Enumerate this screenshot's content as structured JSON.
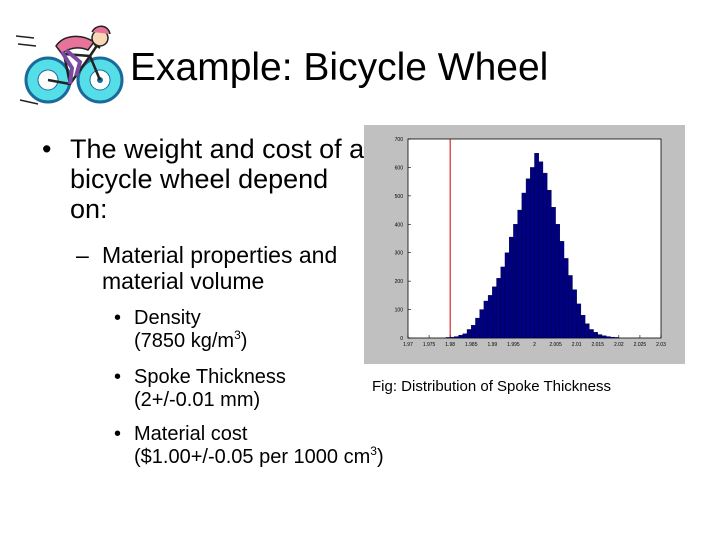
{
  "slide": {
    "title": "Example: Bicycle Wheel",
    "clipart_icon": "cyclist-icon",
    "bullet1": {
      "marker": "•",
      "text": "The weight and cost of a bicycle wheel depend on:"
    },
    "bullet2": {
      "marker": "–",
      "text": "Material properties and material volume"
    },
    "sub_bullets": [
      {
        "marker": "•",
        "line1": "Density",
        "line2_pre": "(7850 kg/m",
        "line2_sup": "3",
        "line2_post": ")"
      },
      {
        "marker": "•",
        "line1": "Spoke Thickness",
        "line2_pre": "(2+/-0.01 mm)",
        "line2_sup": "",
        "line2_post": ""
      },
      {
        "marker": "•",
        "line1": "Material cost",
        "line2_pre": "($1.00+/-0.05 per 1000 cm",
        "line2_sup": "3",
        "line2_post": ")"
      }
    ],
    "caption": "Fig: Distribution of Spoke Thickness"
  },
  "chart_data": {
    "type": "bar",
    "title": "",
    "xlabel": "",
    "ylabel": "",
    "ylim": [
      0,
      700
    ],
    "yticks": [
      0,
      100,
      200,
      300,
      400,
      500,
      600,
      700
    ],
    "xticks": [
      "1.97",
      "1.975",
      "1.98",
      "1.985",
      "1.99",
      "1.995",
      "2",
      "2.005",
      "2.01",
      "2.015",
      "2.02",
      "2.025",
      "2.03"
    ],
    "xlim": [
      1.97,
      2.03
    ],
    "bin_width": 0.001,
    "bin_centers": [
      1.9795,
      1.9805,
      1.9815,
      1.9825,
      1.9835,
      1.9845,
      1.9855,
      1.9865,
      1.9875,
      1.9885,
      1.9895,
      1.9905,
      1.9915,
      1.9925,
      1.9935,
      1.9945,
      1.9955,
      1.9965,
      1.9975,
      1.9985,
      1.9995,
      2.0005,
      2.0015,
      2.0025,
      2.0035,
      2.0045,
      2.0055,
      2.0065,
      2.0075,
      2.0085,
      2.0095,
      2.0105,
      2.0115,
      2.0125,
      2.0135,
      2.0145,
      2.0155,
      2.0165,
      2.0175,
      2.0185,
      2.0195
    ],
    "values": [
      2,
      3,
      5,
      10,
      15,
      30,
      45,
      70,
      100,
      130,
      150,
      180,
      210,
      250,
      300,
      355,
      400,
      450,
      510,
      560,
      600,
      650,
      620,
      580,
      520,
      460,
      400,
      340,
      280,
      220,
      170,
      120,
      80,
      50,
      30,
      20,
      12,
      8,
      5,
      3,
      2
    ],
    "marker_line": {
      "x": 1.98,
      "color": "#cc0000"
    },
    "colors": {
      "bar": "#000080",
      "bar_edge": "#000040",
      "plot_bg": "#ffffff",
      "figure_bg": "#c0c0c0",
      "marker": "#cc0000"
    }
  }
}
